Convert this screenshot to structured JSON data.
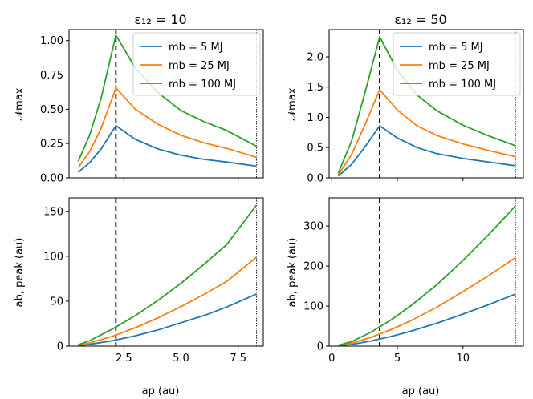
{
  "figure": {
    "titles": [
      "ε₁₂ = 10",
      "ε₁₂ = 50"
    ],
    "ylabel_top": "𝒩max",
    "ylabel_bottom": "ab, peak (au)",
    "xlabel": "ap (au)"
  },
  "chart_data": [
    {
      "id": "top-left",
      "type": "line",
      "title": "ε₁₂ = 10",
      "xlabel": "",
      "ylabel": "𝒩max",
      "xlim": [
        0.1,
        8.6
      ],
      "ylim": [
        0,
        1.08
      ],
      "xticks": [
        2.5,
        5.0,
        7.5
      ],
      "xtick_labels": [],
      "yticks": [
        0,
        0.25,
        0.5,
        0.75,
        1.0
      ],
      "ytick_labels": [
        "0.00",
        "0.25",
        "0.50",
        "0.75",
        "1.00"
      ],
      "vlines": [
        {
          "x": 2.15,
          "style": "dashed"
        },
        {
          "x": 8.3,
          "style": "dotted"
        }
      ],
      "legend": {
        "position": "upper-right"
      },
      "series": [
        {
          "name": "mb = 5 MJ",
          "color": "#1f77b4",
          "x": [
            0.5,
            1.0,
            1.5,
            2.15,
            3.0,
            4.0,
            5.0,
            6.0,
            7.0,
            8.3
          ],
          "y": [
            0.04,
            0.11,
            0.21,
            0.38,
            0.28,
            0.21,
            0.165,
            0.135,
            0.115,
            0.085
          ]
        },
        {
          "name": "mb = 25 MJ",
          "color": "#ff7f0e",
          "x": [
            0.5,
            1.0,
            1.5,
            2.15,
            3.0,
            4.0,
            5.0,
            6.0,
            7.0,
            8.3
          ],
          "y": [
            0.075,
            0.19,
            0.36,
            0.655,
            0.5,
            0.39,
            0.31,
            0.255,
            0.215,
            0.15
          ]
        },
        {
          "name": "mb = 100 MJ",
          "color": "#2ca02c",
          "x": [
            0.5,
            1.0,
            1.5,
            2.15,
            3.0,
            4.0,
            5.0,
            6.0,
            7.0,
            8.3
          ],
          "y": [
            0.12,
            0.31,
            0.58,
            1.04,
            0.8,
            0.62,
            0.49,
            0.41,
            0.345,
            0.23
          ]
        }
      ]
    },
    {
      "id": "top-right",
      "type": "line",
      "title": "ε₁₂ = 50",
      "xlabel": "",
      "ylabel": "𝒩max",
      "xlim": [
        -0.2,
        14.6
      ],
      "ylim": [
        0,
        2.45
      ],
      "xticks": [
        0,
        5,
        10
      ],
      "xtick_labels": [],
      "yticks": [
        0,
        0.5,
        1.0,
        1.5,
        2.0
      ],
      "ytick_labels": [
        "0.0",
        "0.5",
        "1.0",
        "1.5",
        "2.0"
      ],
      "vlines": [
        {
          "x": 3.65,
          "style": "dashed"
        },
        {
          "x": 14.0,
          "style": "dotted"
        }
      ],
      "legend": {
        "position": "upper-right"
      },
      "series": [
        {
          "name": "mb = 5 MJ",
          "color": "#1f77b4",
          "x": [
            0.5,
            1.5,
            2.5,
            3.65,
            5.0,
            6.5,
            8.0,
            10.0,
            12.0,
            14.0
          ],
          "y": [
            0.03,
            0.22,
            0.5,
            0.86,
            0.66,
            0.5,
            0.4,
            0.32,
            0.26,
            0.2
          ]
        },
        {
          "name": "mb = 25 MJ",
          "color": "#ff7f0e",
          "x": [
            0.5,
            1.5,
            2.5,
            3.65,
            5.0,
            6.5,
            8.0,
            10.0,
            12.0,
            14.0
          ],
          "y": [
            0.05,
            0.38,
            0.86,
            1.46,
            1.12,
            0.86,
            0.7,
            0.56,
            0.45,
            0.35
          ]
        },
        {
          "name": "mb = 100 MJ",
          "color": "#2ca02c",
          "x": [
            0.5,
            1.5,
            2.5,
            3.65,
            5.0,
            6.5,
            8.0,
            10.0,
            12.0,
            14.0
          ],
          "y": [
            0.08,
            0.6,
            1.38,
            2.33,
            1.78,
            1.37,
            1.11,
            0.87,
            0.69,
            0.53
          ]
        }
      ]
    },
    {
      "id": "bottom-left",
      "type": "line",
      "title": "",
      "xlabel": "ap (au)",
      "ylabel": "ab, peak (au)",
      "xlim": [
        0.1,
        8.6
      ],
      "ylim": [
        0,
        165
      ],
      "xticks": [
        2.5,
        5.0,
        7.5
      ],
      "xtick_labels": [
        "2.5",
        "5.0",
        "7.5"
      ],
      "yticks": [
        0,
        50,
        100,
        150
      ],
      "ytick_labels": [
        "0",
        "50",
        "100",
        "150"
      ],
      "vlines": [
        {
          "x": 2.15,
          "style": "dashed"
        },
        {
          "x": 8.3,
          "style": "dotted"
        }
      ],
      "series": [
        {
          "name": "mb = 5 MJ",
          "color": "#1f77b4",
          "x": [
            0.5,
            1.0,
            2.0,
            3.0,
            4.0,
            5.0,
            6.0,
            7.0,
            8.3
          ],
          "y": [
            0.5,
            2,
            6,
            11.5,
            18,
            26,
            34,
            43.5,
            58
          ]
        },
        {
          "name": "mb = 25 MJ",
          "color": "#ff7f0e",
          "x": [
            0.5,
            1.0,
            2.0,
            3.0,
            4.0,
            5.0,
            6.0,
            7.0,
            8.3
          ],
          "y": [
            1,
            3.5,
            11,
            20.5,
            31.5,
            44,
            57.5,
            72,
            99
          ]
        },
        {
          "name": "mb = 100 MJ",
          "color": "#2ca02c",
          "x": [
            0.5,
            1.0,
            2.0,
            3.0,
            4.0,
            5.0,
            6.0,
            7.0,
            8.3
          ],
          "y": [
            1.5,
            6,
            19,
            34,
            51,
            70,
            91,
            113,
            157
          ]
        }
      ]
    },
    {
      "id": "bottom-right",
      "type": "line",
      "title": "",
      "xlabel": "ap (au)",
      "ylabel": "ab, peak (au)",
      "xlim": [
        -0.2,
        14.6
      ],
      "ylim": [
        0,
        370
      ],
      "xticks": [
        0,
        5,
        10
      ],
      "xtick_labels": [
        "0",
        "5",
        "10"
      ],
      "yticks": [
        0,
        100,
        200,
        300
      ],
      "ytick_labels": [
        "0",
        "100",
        "200",
        "300"
      ],
      "vlines": [
        {
          "x": 3.65,
          "style": "dashed"
        },
        {
          "x": 14.0,
          "style": "dotted"
        }
      ],
      "series": [
        {
          "name": "mb = 5 MJ",
          "color": "#1f77b4",
          "x": [
            0.5,
            1.5,
            3.0,
            4.5,
            6.0,
            8.0,
            10.0,
            12.0,
            14.0
          ],
          "y": [
            1,
            4,
            13,
            24,
            37,
            57,
            80,
            104,
            130
          ]
        },
        {
          "name": "mb = 25 MJ",
          "color": "#ff7f0e",
          "x": [
            0.5,
            1.5,
            3.0,
            4.5,
            6.0,
            8.0,
            10.0,
            12.0,
            14.0
          ],
          "y": [
            1.5,
            7,
            22,
            41,
            63,
            97,
            136,
            177,
            221
          ]
        },
        {
          "name": "mb = 100 MJ",
          "color": "#2ca02c",
          "x": [
            0.5,
            1.5,
            3.0,
            4.5,
            6.0,
            8.0,
            10.0,
            12.0,
            14.0
          ],
          "y": [
            2,
            11,
            35,
            65,
            100,
            153,
            214,
            280,
            350
          ]
        }
      ]
    }
  ]
}
